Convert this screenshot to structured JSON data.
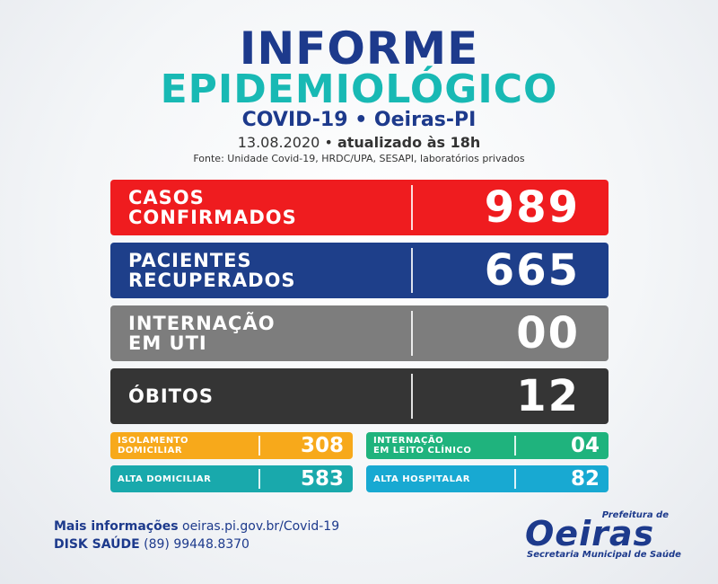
{
  "header": {
    "title_line1": "INFORME",
    "title_line2": "EPIDEMIOLÓGICO",
    "subtitle": "COVID-19 • Oeiras-PI",
    "date": "13.08.2020",
    "updated": "atualizado às 18h",
    "source": "Fonte: Unidade Covid-19, HRDC/UPA, SESAPI, laboratórios privados"
  },
  "main_stats": [
    {
      "label": "CASOS\nCONFIRMADOS",
      "value": "989",
      "color": "#ef1c1f"
    },
    {
      "label": "PACIENTES\nRECUPERADOS",
      "value": "665",
      "color": "#1e3f8a"
    },
    {
      "label": "INTERNAÇÃO\nEM UTI",
      "value": "00",
      "color": "#7d7d7d"
    },
    {
      "label": "ÓBITOS",
      "value": "12",
      "color": "#353535"
    }
  ],
  "secondary_stats": [
    {
      "label": "ISOLAMENTO\nDOMICILIAR",
      "value": "308",
      "color": "#f7a91b"
    },
    {
      "label": "INTERNAÇÃO\nEM LEITO CLÍNICO",
      "value": "04",
      "color": "#1fb37d"
    },
    {
      "label": "ALTA DOMICILIAR",
      "value": "583",
      "color": "#19a9ac"
    },
    {
      "label": "ALTA HOSPITALAR",
      "value": "82",
      "color": "#18a9d2"
    }
  ],
  "footer": {
    "info_label": "Mais informações",
    "info_url": "oeiras.pi.gov.br/Covid-19",
    "disk_label": "DISK SAÚDE",
    "disk_phone": "(89) 99448.8370"
  },
  "logo": {
    "prefix": "Prefeitura de",
    "name": "Oeiras",
    "department": "Secretaria Municipal de Saúde"
  }
}
